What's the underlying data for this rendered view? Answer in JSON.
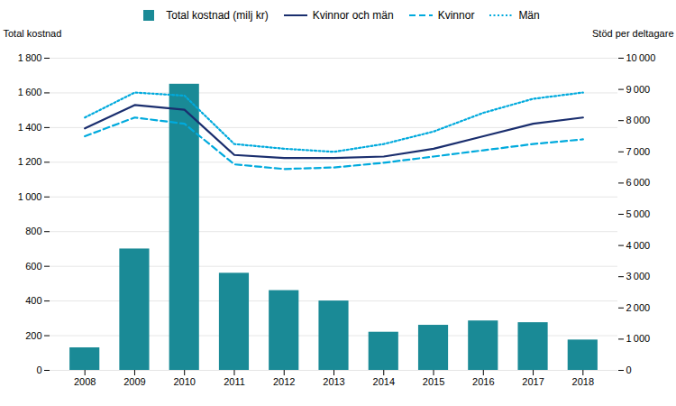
{
  "chart_data": {
    "type": "bar",
    "categories": [
      "2008",
      "2009",
      "2010",
      "2011",
      "2012",
      "2013",
      "2014",
      "2015",
      "2016",
      "2017",
      "2018"
    ],
    "series": [
      {
        "name": "Total kostnad (milj kr)",
        "type": "bar",
        "color": "#1a8a96",
        "values": [
          130,
          700,
          1650,
          560,
          460,
          400,
          220,
          260,
          285,
          275,
          175
        ]
      },
      {
        "name": "Kvinnor och män",
        "type": "line",
        "axis": "y2",
        "color": "#1a2e6e",
        "line_style": "solid",
        "values": [
          7750,
          8500,
          8350,
          6900,
          6800,
          6800,
          6850,
          7100,
          7500,
          7900,
          8100
        ]
      },
      {
        "name": "Kvinnor",
        "type": "line",
        "axis": "y2",
        "color": "#00aadd",
        "line_style": "dashed",
        "values": [
          7500,
          8100,
          7900,
          6600,
          6450,
          6500,
          6650,
          6850,
          7050,
          7250,
          7400
        ]
      },
      {
        "name": "Män",
        "type": "line",
        "axis": "y2",
        "color": "#00aadd",
        "line_style": "dotted",
        "values": [
          8100,
          8900,
          8800,
          7250,
          7100,
          7000,
          7250,
          7650,
          8250,
          8700,
          8900
        ]
      }
    ],
    "ylabel": "Total kostnad",
    "y2label": "Stöd per deltagare",
    "ylim": [
      0,
      1800
    ],
    "yticks": [
      0,
      200,
      400,
      600,
      800,
      {
        "value": 1000,
        "label": "1 000"
      },
      {
        "value": 1200,
        "label": "1 200"
      },
      {
        "value": 1400,
        "label": "1 400"
      },
      {
        "value": 1600,
        "label": "1 600"
      },
      {
        "value": 1800,
        "label": "1 800"
      }
    ],
    "y2lim": [
      0,
      10000
    ],
    "y2ticks": [
      0,
      {
        "value": 1000,
        "label": "1 000"
      },
      {
        "value": 2000,
        "label": "2 000"
      },
      {
        "value": 3000,
        "label": "3 000"
      },
      {
        "value": 4000,
        "label": "4 000"
      },
      {
        "value": 5000,
        "label": "5 000"
      },
      {
        "value": 6000,
        "label": "6 000"
      },
      {
        "value": 7000,
        "label": "7 000"
      },
      {
        "value": 8000,
        "label": "8 000"
      },
      {
        "value": 9000,
        "label": "9 000"
      },
      {
        "value": 10000,
        "label": "10 000"
      }
    ],
    "grid": true,
    "legend": "top"
  }
}
